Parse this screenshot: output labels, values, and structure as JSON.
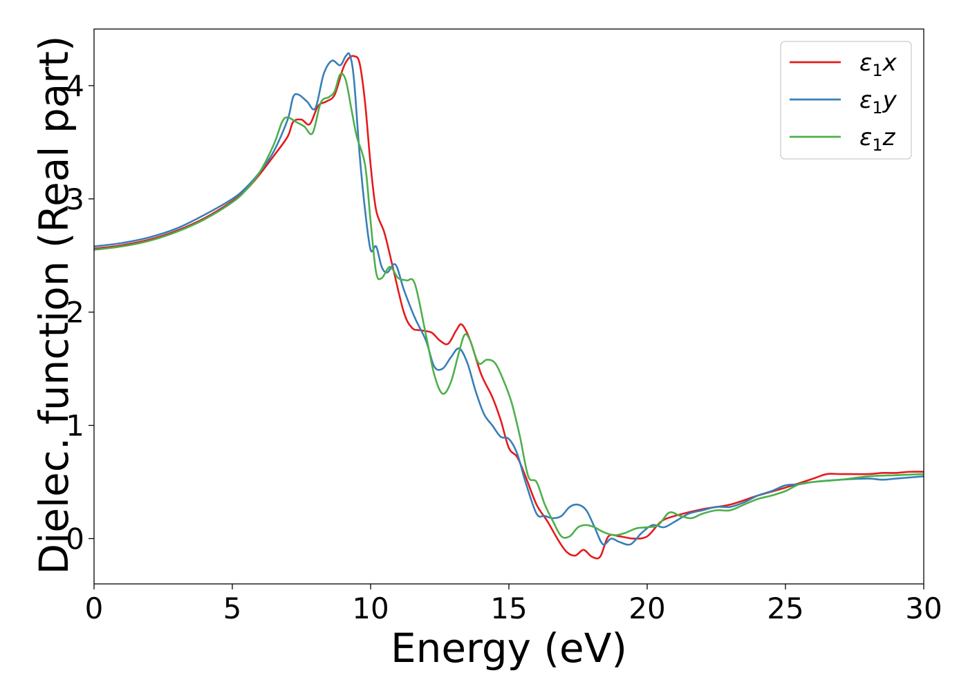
{
  "chart_data": {
    "type": "line",
    "title": "",
    "xlabel": "Energy (eV)",
    "ylabel": "Dielec. function (Real part)",
    "xlim": [
      0,
      30
    ],
    "ylim": [
      -0.4,
      4.5
    ],
    "xticks": [
      0,
      5,
      10,
      15,
      20,
      25,
      30
    ],
    "xtick_labels": [
      "0",
      "5",
      "10",
      "15",
      "20",
      "25",
      "30"
    ],
    "yticks": [
      0,
      1,
      2,
      3,
      4
    ],
    "ytick_labels": [
      "0",
      "1",
      "2",
      "3",
      "4"
    ],
    "grid": false,
    "legend_position": "top-right",
    "series": [
      {
        "name": "ε₁x",
        "legend_main": "ε",
        "legend_sub": "1",
        "legend_var": "x",
        "color": "#e41a1c",
        "x": [
          0,
          1,
          2,
          3,
          4,
          5,
          5.5,
          6,
          6.5,
          7,
          7.2,
          7.5,
          7.8,
          8.1,
          8.4,
          8.7,
          9.0,
          9.2,
          9.4,
          9.6,
          9.8,
          10.0,
          10.2,
          10.5,
          10.8,
          11.2,
          11.5,
          11.8,
          12.2,
          12.5,
          12.8,
          13.1,
          13.3,
          13.6,
          14.0,
          14.4,
          14.7,
          15.0,
          15.3,
          15.6,
          16.0,
          16.4,
          16.8,
          17.1,
          17.4,
          17.7,
          18.0,
          18.3,
          18.6,
          19.0,
          19.5,
          20.0,
          20.5,
          21.0,
          22.0,
          23.0,
          24.0,
          25.0,
          26.0,
          26.5,
          27.0,
          28.0,
          28.5,
          29.0,
          29.5,
          30.0
        ],
        "y": [
          2.56,
          2.59,
          2.64,
          2.72,
          2.83,
          2.98,
          3.08,
          3.22,
          3.38,
          3.55,
          3.68,
          3.7,
          3.66,
          3.82,
          3.86,
          3.92,
          4.15,
          4.24,
          4.26,
          4.2,
          3.85,
          3.3,
          2.9,
          2.7,
          2.4,
          2.0,
          1.86,
          1.84,
          1.82,
          1.75,
          1.72,
          1.84,
          1.89,
          1.75,
          1.45,
          1.25,
          1.05,
          0.8,
          0.72,
          0.55,
          0.3,
          0.15,
          -0.02,
          -0.12,
          -0.15,
          -0.1,
          -0.16,
          -0.16,
          0.02,
          0.02,
          0.0,
          0.02,
          0.15,
          0.2,
          0.26,
          0.3,
          0.38,
          0.45,
          0.53,
          0.57,
          0.57,
          0.57,
          0.58,
          0.58,
          0.59,
          0.59
        ]
      },
      {
        "name": "ε₁y",
        "legend_main": "ε",
        "legend_sub": "1",
        "legend_var": "y",
        "color": "#377eb8",
        "x": [
          0,
          1,
          2,
          3,
          4,
          5,
          5.5,
          6,
          6.5,
          7,
          7.2,
          7.4,
          7.7,
          8.0,
          8.3,
          8.6,
          8.9,
          9.1,
          9.25,
          9.4,
          9.6,
          9.8,
          10.0,
          10.2,
          10.4,
          10.6,
          10.9,
          11.2,
          11.6,
          12.0,
          12.3,
          12.6,
          12.9,
          13.2,
          13.5,
          13.8,
          14.1,
          14.4,
          14.7,
          15.0,
          15.3,
          15.6,
          16.0,
          16.3,
          16.6,
          16.9,
          17.2,
          17.5,
          17.8,
          18.1,
          18.4,
          18.7,
          19.0,
          19.4,
          19.8,
          20.2,
          20.6,
          21.0,
          21.5,
          22.0,
          22.5,
          23.0,
          23.5,
          24.0,
          24.5,
          25.0,
          25.5,
          26.0,
          27.0,
          28.0,
          28.5,
          29.0,
          30.0
        ],
        "y": [
          2.58,
          2.61,
          2.66,
          2.74,
          2.86,
          3.0,
          3.1,
          3.24,
          3.42,
          3.7,
          3.9,
          3.92,
          3.86,
          3.8,
          4.1,
          4.22,
          4.18,
          4.26,
          4.27,
          4.05,
          3.4,
          2.9,
          2.55,
          2.58,
          2.4,
          2.35,
          2.42,
          2.2,
          1.95,
          1.75,
          1.52,
          1.5,
          1.6,
          1.68,
          1.55,
          1.3,
          1.1,
          1.0,
          0.9,
          0.88,
          0.75,
          0.5,
          0.22,
          0.2,
          0.18,
          0.2,
          0.28,
          0.3,
          0.25,
          0.1,
          -0.05,
          0.0,
          -0.03,
          -0.05,
          0.05,
          0.12,
          0.1,
          0.15,
          0.22,
          0.25,
          0.28,
          0.28,
          0.32,
          0.38,
          0.42,
          0.47,
          0.48,
          0.5,
          0.52,
          0.53,
          0.52,
          0.53,
          0.55
        ]
      },
      {
        "name": "ε₁z",
        "legend_main": "ε",
        "legend_sub": "1",
        "legend_var": "z",
        "color": "#4daf4a",
        "x": [
          0,
          1,
          2,
          3,
          4,
          5,
          5.5,
          6,
          6.5,
          6.8,
          7.0,
          7.3,
          7.6,
          7.9,
          8.2,
          8.5,
          8.7,
          8.9,
          9.1,
          9.3,
          9.5,
          9.8,
          10.0,
          10.2,
          10.4,
          10.7,
          11.0,
          11.3,
          11.6,
          12.0,
          12.3,
          12.6,
          12.9,
          13.2,
          13.4,
          13.6,
          13.9,
          14.2,
          14.5,
          14.8,
          15.1,
          15.4,
          15.7,
          16.0,
          16.3,
          16.6,
          16.9,
          17.2,
          17.5,
          17.8,
          18.1,
          18.4,
          18.8,
          19.2,
          19.6,
          20.0,
          20.4,
          20.8,
          21.2,
          21.6,
          22.0,
          22.5,
          23.0,
          23.5,
          24.0,
          24.5,
          25.0,
          25.5,
          26.0,
          27.0,
          28.0,
          29.0,
          30.0
        ],
        "y": [
          2.55,
          2.58,
          2.63,
          2.71,
          2.82,
          2.97,
          3.08,
          3.24,
          3.48,
          3.68,
          3.72,
          3.68,
          3.64,
          3.58,
          3.85,
          3.9,
          3.95,
          4.1,
          4.05,
          3.8,
          3.55,
          3.3,
          2.8,
          2.35,
          2.3,
          2.4,
          2.3,
          2.28,
          2.25,
          1.8,
          1.45,
          1.28,
          1.38,
          1.65,
          1.8,
          1.75,
          1.55,
          1.58,
          1.55,
          1.4,
          1.2,
          0.9,
          0.55,
          0.5,
          0.3,
          0.15,
          0.02,
          0.02,
          0.1,
          0.12,
          0.1,
          0.06,
          0.03,
          0.05,
          0.09,
          0.1,
          0.12,
          0.23,
          0.2,
          0.18,
          0.22,
          0.25,
          0.25,
          0.3,
          0.35,
          0.38,
          0.42,
          0.48,
          0.5,
          0.52,
          0.55,
          0.56,
          0.57
        ]
      }
    ]
  }
}
